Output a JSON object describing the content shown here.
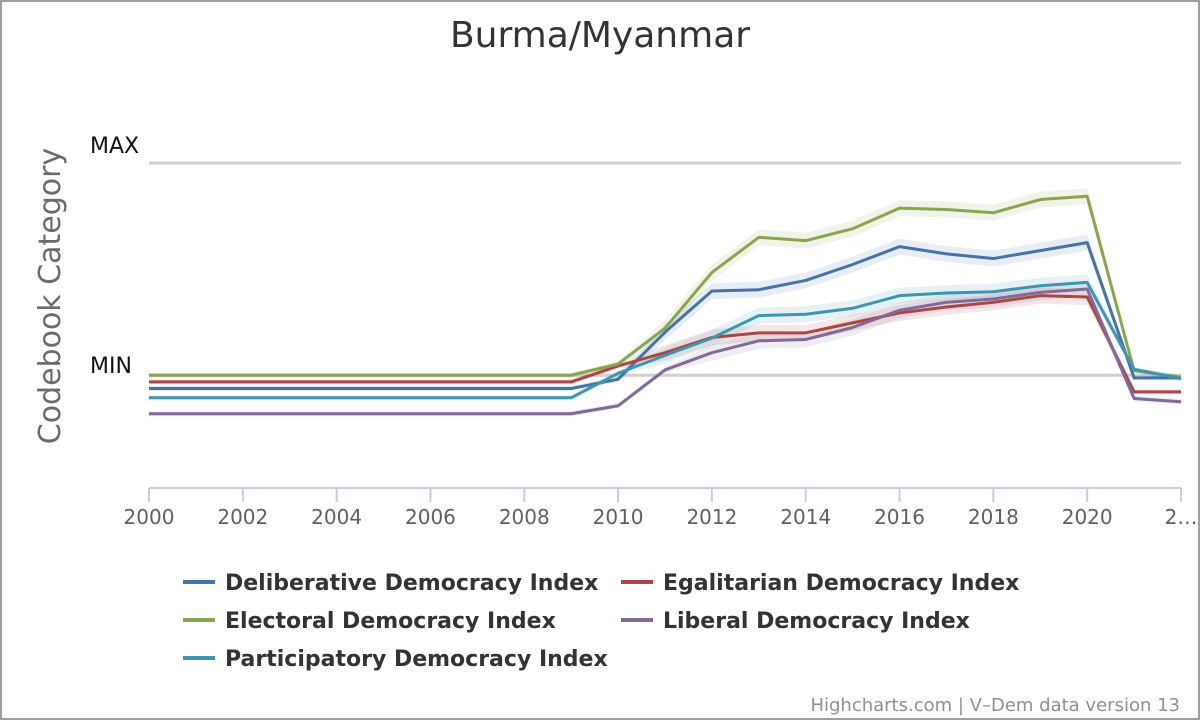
{
  "chart_data": {
    "type": "line",
    "title": "Burma/Myanmar",
    "xlabel": "",
    "ylabel": "Codebook Category",
    "y_markers": [
      "MAX",
      "MIN"
    ],
    "x_tick_labels": [
      "2000",
      "2002",
      "2004",
      "2006",
      "2008",
      "2010",
      "2012",
      "2014",
      "2016",
      "2018",
      "2020",
      "2…"
    ],
    "xlim": [
      2000,
      2022
    ],
    "ylim": [
      -0.17,
      0.4
    ],
    "legend_position": "bottom",
    "grid": true,
    "series": [
      {
        "name": "Deliberative Democracy Index",
        "color": "#4572A7",
        "x": [
          2000,
          2001,
          2002,
          2003,
          2004,
          2005,
          2006,
          2007,
          2008,
          2009,
          2010,
          2011,
          2012,
          2013,
          2014,
          2015,
          2016,
          2017,
          2018,
          2019,
          2020,
          2021,
          2022
        ],
        "values": [
          -0.02,
          -0.02,
          -0.02,
          -0.02,
          -0.02,
          -0.02,
          -0.02,
          -0.02,
          -0.02,
          -0.02,
          -0.006,
          0.065,
          0.127,
          0.129,
          0.143,
          0.167,
          0.194,
          0.183,
          0.176,
          0.188,
          0.2,
          -0.004,
          -0.004
        ]
      },
      {
        "name": "Egalitarian Democracy Index",
        "color": "#AA4643",
        "x": [
          2000,
          2001,
          2002,
          2003,
          2004,
          2005,
          2006,
          2007,
          2008,
          2009,
          2010,
          2011,
          2012,
          2013,
          2014,
          2015,
          2016,
          2017,
          2018,
          2019,
          2020,
          2021,
          2022
        ],
        "values": [
          -0.01,
          -0.01,
          -0.01,
          -0.01,
          -0.01,
          -0.01,
          -0.01,
          -0.01,
          -0.01,
          -0.01,
          0.014,
          0.034,
          0.057,
          0.064,
          0.064,
          0.079,
          0.094,
          0.103,
          0.11,
          0.12,
          0.118,
          -0.025,
          -0.025
        ]
      },
      {
        "name": "Electoral Democracy Index",
        "color": "#89A54E",
        "x": [
          2000,
          2001,
          2002,
          2003,
          2004,
          2005,
          2006,
          2007,
          2008,
          2009,
          2010,
          2011,
          2012,
          2013,
          2014,
          2015,
          2016,
          2017,
          2018,
          2019,
          2020,
          2021,
          2022
        ],
        "values": [
          0,
          0,
          0,
          0,
          0,
          0,
          0,
          0,
          0,
          0,
          0.017,
          0.071,
          0.155,
          0.208,
          0.203,
          0.221,
          0.252,
          0.25,
          0.245,
          0.265,
          0.27,
          0.007,
          -0.003
        ]
      },
      {
        "name": "Liberal Democracy Index",
        "color": "#80699B",
        "x": [
          2000,
          2001,
          2002,
          2003,
          2004,
          2005,
          2006,
          2007,
          2008,
          2009,
          2010,
          2011,
          2012,
          2013,
          2014,
          2015,
          2016,
          2017,
          2018,
          2019,
          2020,
          2021,
          2022
        ],
        "values": [
          -0.058,
          -0.058,
          -0.058,
          -0.058,
          -0.058,
          -0.058,
          -0.058,
          -0.058,
          -0.058,
          -0.058,
          -0.046,
          0.008,
          0.034,
          0.052,
          0.054,
          0.072,
          0.098,
          0.11,
          0.115,
          0.125,
          0.13,
          -0.035,
          -0.04
        ]
      },
      {
        "name": "Participatory Democracy Index",
        "color": "#3D96AE",
        "x": [
          2000,
          2001,
          2002,
          2003,
          2004,
          2005,
          2006,
          2007,
          2008,
          2009,
          2010,
          2011,
          2012,
          2013,
          2014,
          2015,
          2016,
          2017,
          2018,
          2019,
          2020,
          2021,
          2022
        ],
        "values": [
          -0.034,
          -0.034,
          -0.034,
          -0.034,
          -0.034,
          -0.034,
          -0.034,
          -0.034,
          -0.034,
          -0.034,
          0.003,
          0.03,
          0.056,
          0.09,
          0.092,
          0.101,
          0.12,
          0.124,
          0.126,
          0.135,
          0.14,
          0.009,
          -0.005
        ]
      }
    ]
  },
  "credits": "Highcharts.com | V–Dem data version 13"
}
